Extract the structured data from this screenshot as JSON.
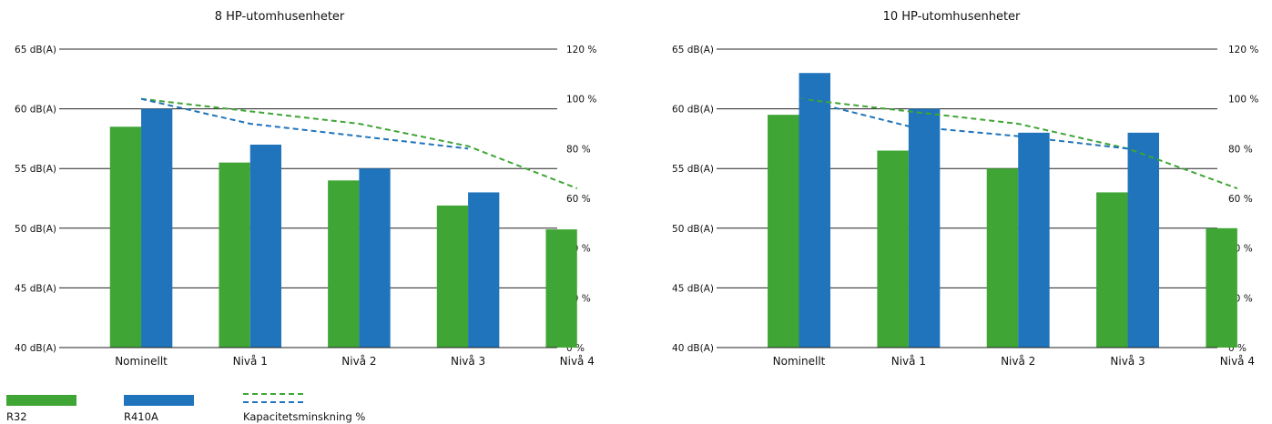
{
  "colors": {
    "r32": "#3fa535",
    "r410a": "#1f74bb",
    "dash_green": "#3fa535",
    "dash_blue": "#1f74bb"
  },
  "legend": {
    "r32": "R32",
    "r410a": "R410A",
    "capacity": "Kapacitetsminskning %"
  },
  "chart_data": [
    {
      "type": "bar",
      "title": "8 HP-utomhusenheter",
      "categories": [
        "Nominellt",
        "Nivå 1",
        "Nivå 2",
        "Nivå 3",
        "Nivå 4"
      ],
      "y_left": {
        "ticks": [
          "40 dB(A)",
          "45 dB(A)",
          "50 dB(A)",
          "55 dB(A)",
          "60 dB(A)",
          "65 dB(A)"
        ],
        "ylim": [
          40,
          65
        ]
      },
      "y_right": {
        "ticks": [
          "0 %",
          "20 %",
          "40 %",
          "60 %",
          "80 %",
          "100 %",
          "120 %"
        ],
        "ylim": [
          0,
          120
        ]
      },
      "gridlines": [
        45,
        50,
        55,
        60,
        65
      ],
      "series": [
        {
          "name": "R32",
          "kind": "bar",
          "axis": "left",
          "values": [
            58.5,
            55.5,
            54,
            51.9,
            49.9
          ]
        },
        {
          "name": "R410A",
          "kind": "bar",
          "axis": "left",
          "values": [
            60,
            57,
            55,
            53,
            null
          ]
        },
        {
          "name": "Kapacitetsminskning %",
          "kind": "dashed-line",
          "color": "green",
          "axis": "right",
          "values": [
            100,
            95,
            90,
            81,
            64
          ]
        },
        {
          "name": "Kapacitetsminskning %",
          "kind": "dashed-line",
          "color": "blue",
          "axis": "right",
          "values": [
            100,
            90,
            85,
            80,
            null
          ]
        }
      ]
    },
    {
      "type": "bar",
      "title": "10 HP-utomhusenheter",
      "categories": [
        "Nominellt",
        "Nivå 1",
        "Nivå 2",
        "Nivå 3",
        "Nivå 4"
      ],
      "y_left": {
        "ticks": [
          "40 dB(A)",
          "45 dB(A)",
          "50 dB(A)",
          "55 dB(A)",
          "60 dB(A)",
          "65 dB(A)"
        ],
        "ylim": [
          40,
          65
        ]
      },
      "y_right": {
        "ticks": [
          "0 %",
          "20 %",
          "40 %",
          "60 %",
          "80 %",
          "100 %",
          "120 %"
        ],
        "ylim": [
          0,
          120
        ]
      },
      "gridlines": [
        45,
        50,
        55,
        60,
        65
      ],
      "series": [
        {
          "name": "R32",
          "kind": "bar",
          "axis": "left",
          "values": [
            59.5,
            56.5,
            55,
            53,
            50
          ]
        },
        {
          "name": "R410A",
          "kind": "bar",
          "axis": "left",
          "values": [
            63,
            60,
            58,
            58,
            null
          ]
        },
        {
          "name": "Kapacitetsminskning %",
          "kind": "dashed-line",
          "color": "green",
          "axis": "right",
          "values": [
            100,
            95,
            90,
            80,
            64
          ]
        },
        {
          "name": "Kapacitetsminskning %",
          "kind": "dashed-line",
          "color": "blue",
          "axis": "right",
          "values": [
            100,
            89,
            85,
            80,
            null
          ]
        }
      ]
    }
  ]
}
